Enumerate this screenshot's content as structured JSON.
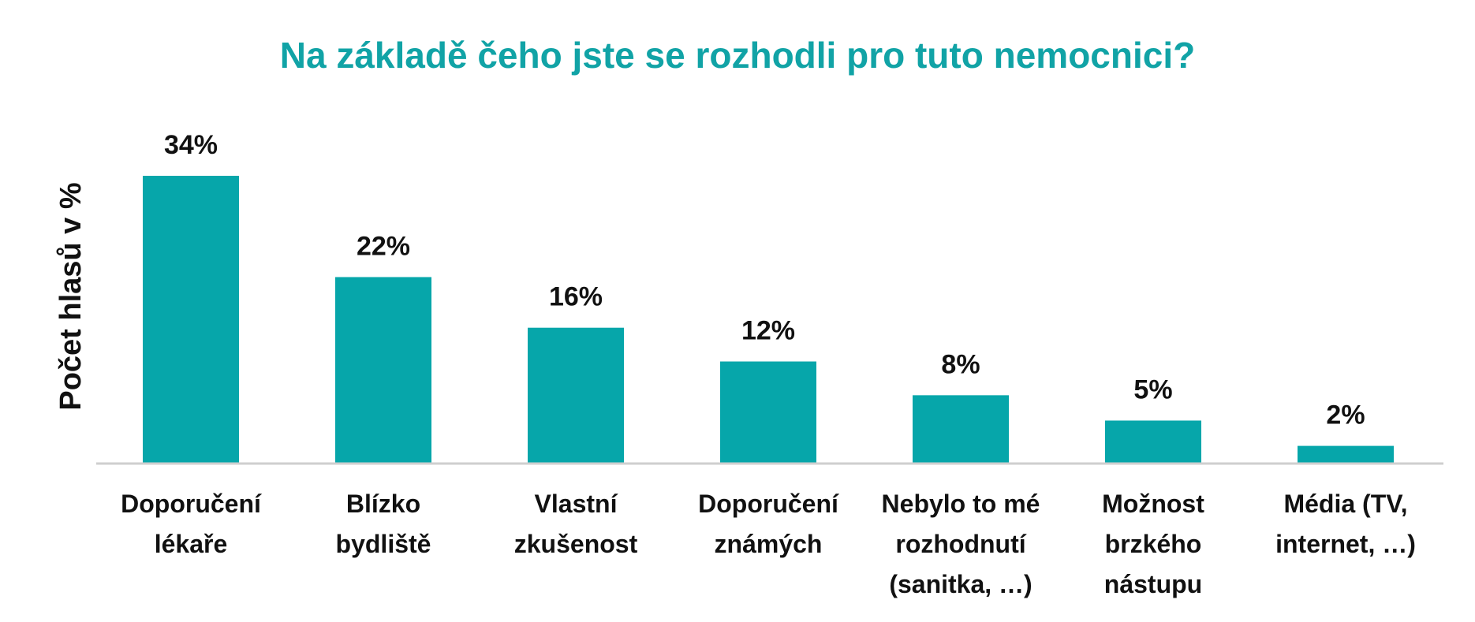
{
  "colors": {
    "title": "#11A3A6",
    "bar": "#06A6AA",
    "axis": "#CFCFCF",
    "text": "#111111"
  },
  "chart_data": {
    "type": "bar",
    "title": "Na základě čeho jste se rozhodli pro tuto nemocnici?",
    "xlabel": "",
    "ylabel": "Počet hlasů v %",
    "ylim": [
      0,
      34
    ],
    "grid": false,
    "legend": "none",
    "categories": [
      [
        "Doporučení",
        "lékaře"
      ],
      [
        "Blízko",
        "bydliště"
      ],
      [
        "Vlastní",
        "zkušenost"
      ],
      [
        "Doporučení",
        "známých"
      ],
      [
        "Nebylo to mé",
        "rozhodnutí",
        "(sanitka, …)"
      ],
      [
        "Možnost",
        "brzkého",
        "nástupu"
      ],
      [
        "Média (TV,",
        "internet, …)"
      ]
    ],
    "values": [
      34,
      22,
      16,
      12,
      8,
      5,
      2
    ],
    "value_labels": [
      "34%",
      "22%",
      "16%",
      "12%",
      "8%",
      "5%",
      "2%"
    ]
  }
}
